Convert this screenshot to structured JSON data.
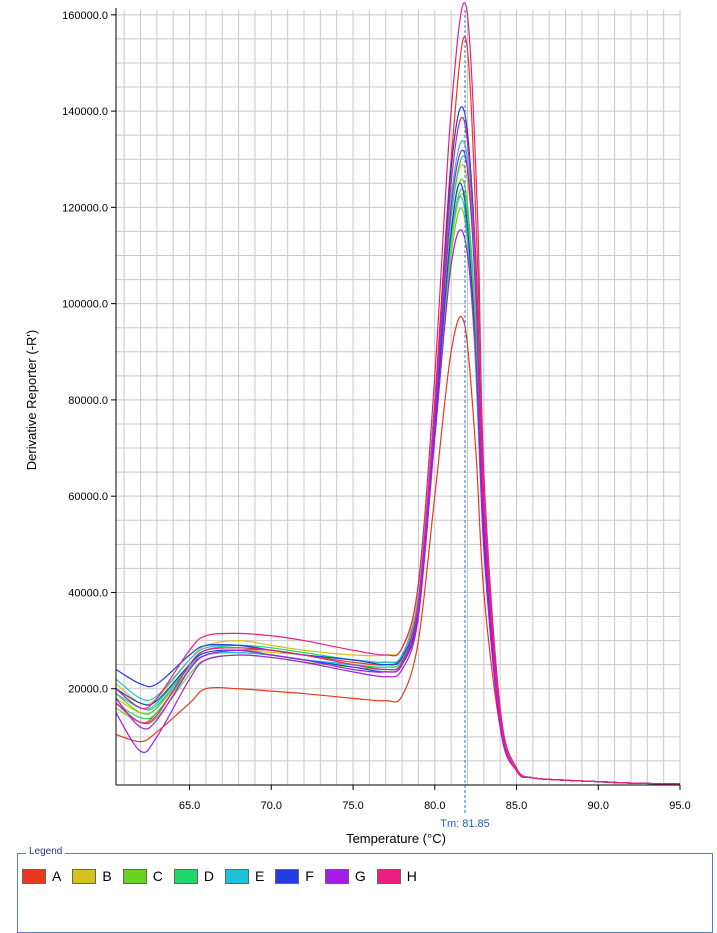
{
  "chart_data": {
    "type": "line",
    "title": "",
    "xlabel": "Temperature (°C)",
    "ylabel": "Derivative Reporter (-R')",
    "xlim": [
      60.5,
      95.0
    ],
    "ylim": [
      0,
      161000
    ],
    "x_ticks": [
      65.0,
      70.0,
      75.0,
      80.0,
      85.0,
      90.0,
      95.0
    ],
    "x_tick_labels": [
      "65.0",
      "70.0",
      "75.0",
      "80.0",
      "85.0",
      "90.0",
      "95.0"
    ],
    "y_ticks": [
      20000,
      40000,
      60000,
      80000,
      100000,
      120000,
      140000,
      160000
    ],
    "y_tick_labels": [
      "20000.0",
      "40000.0",
      "60000.0",
      "80000.0",
      "100000.0",
      "120000.0",
      "140000.0",
      "160000.0"
    ],
    "grid": true,
    "annotation": {
      "label": "Tm: 81.85",
      "x": 81.85
    },
    "legend": {
      "title": "Legend",
      "placement": "bottom",
      "items": [
        {
          "label": "A",
          "color": "#e8381e"
        },
        {
          "label": "B",
          "color": "#d4c21c"
        },
        {
          "label": "C",
          "color": "#6ad11e"
        },
        {
          "label": "D",
          "color": "#1ed86a"
        },
        {
          "label": "E",
          "color": "#1ec2d8"
        },
        {
          "label": "F",
          "color": "#1e3ee0"
        },
        {
          "label": "G",
          "color": "#a21ee8"
        },
        {
          "label": "H",
          "color": "#e81e82"
        }
      ]
    },
    "series": [
      {
        "group": "A",
        "color": "#e8381e",
        "peak_x": 81.8,
        "x": [
          60.5,
          62,
          63,
          65,
          66,
          68,
          70,
          72,
          75,
          77,
          78,
          79,
          80,
          81,
          81.8,
          82.5,
          83,
          84,
          85,
          86,
          88,
          90,
          92,
          95
        ],
        "y": [
          10500,
          9000,
          11000,
          17000,
          20000,
          20000,
          19500,
          19000,
          18000,
          17500,
          18500,
          30000,
          60000,
          90000,
          96000,
          70000,
          40000,
          12000,
          3000,
          1500,
          1000,
          700,
          400,
          200
        ]
      },
      {
        "group": "A",
        "color": "#e8381e",
        "peak_x": 81.9,
        "x": [
          60.5,
          62,
          63,
          65,
          66,
          68,
          70,
          72,
          75,
          77,
          78,
          79,
          80,
          81,
          81.9,
          82.6,
          83,
          84,
          85,
          86,
          88,
          90,
          92,
          95
        ],
        "y": [
          17000,
          13000,
          15000,
          24000,
          27000,
          28000,
          28000,
          27000,
          25500,
          25000,
          27000,
          40000,
          80000,
          130000,
          155000,
          110000,
          60000,
          15000,
          3500,
          1500,
          1000,
          700,
          400,
          200
        ]
      },
      {
        "group": "B",
        "color": "#d4c21c",
        "peak_x": 81.85,
        "x": [
          60.5,
          62,
          63,
          65,
          66,
          68,
          70,
          72,
          75,
          77,
          78,
          79,
          80,
          81,
          81.85,
          82.6,
          83,
          84,
          85,
          86,
          88,
          90,
          92,
          95
        ],
        "y": [
          21000,
          17000,
          18000,
          26000,
          29000,
          30000,
          29000,
          28000,
          27000,
          27000,
          28500,
          40000,
          78000,
          118000,
          128000,
          100000,
          55000,
          14000,
          3000,
          1500,
          1000,
          700,
          400,
          200
        ]
      },
      {
        "group": "B",
        "color": "#d4c21c",
        "peak_x": 81.8,
        "x": [
          60.5,
          62,
          63,
          65,
          66,
          68,
          70,
          72,
          75,
          77,
          78,
          79,
          80,
          81,
          81.8,
          82.5,
          83,
          84,
          85,
          86,
          88,
          90,
          92,
          95
        ],
        "y": [
          18000,
          15000,
          16000,
          24000,
          27000,
          28000,
          27500,
          27000,
          25000,
          24500,
          26000,
          38000,
          75000,
          112000,
          122000,
          95000,
          52000,
          13000,
          3000,
          1500,
          1000,
          700,
          400,
          200
        ]
      },
      {
        "group": "C",
        "color": "#6ad11e",
        "peak_x": 81.8,
        "x": [
          60.5,
          62,
          63,
          65,
          66,
          68,
          70,
          72,
          75,
          77,
          78,
          79,
          80,
          81,
          81.8,
          82.5,
          83,
          84,
          85,
          86,
          88,
          90,
          92,
          95
        ],
        "y": [
          19000,
          15000,
          16000,
          25000,
          28000,
          28500,
          28000,
          27000,
          26000,
          25500,
          27000,
          39000,
          77000,
          115000,
          125000,
          97000,
          53000,
          13000,
          3000,
          1500,
          1000,
          700,
          400,
          200
        ]
      },
      {
        "group": "C",
        "color": "#6ad11e",
        "peak_x": 81.75,
        "x": [
          60.5,
          62,
          63,
          65,
          66,
          68,
          70,
          72,
          75,
          77,
          78,
          79,
          80,
          81,
          81.75,
          82.4,
          83,
          84,
          85,
          86,
          88,
          90,
          92,
          95
        ],
        "y": [
          16000,
          13000,
          14000,
          23000,
          26000,
          27000,
          26500,
          25500,
          24500,
          24000,
          25500,
          37000,
          74000,
          110000,
          119000,
          93000,
          50000,
          12500,
          3000,
          1500,
          1000,
          700,
          400,
          200
        ]
      },
      {
        "group": "D",
        "color": "#1ed86a",
        "peak_x": 81.9,
        "x": [
          60.5,
          62,
          63,
          65,
          66,
          68,
          70,
          72,
          75,
          77,
          78,
          79,
          80,
          81,
          81.9,
          82.6,
          83,
          84,
          85,
          86,
          88,
          90,
          92,
          95
        ],
        "y": [
          20000,
          16000,
          17000,
          25000,
          28000,
          29000,
          28500,
          27500,
          26000,
          25500,
          27000,
          39000,
          78000,
          118000,
          130000,
          101000,
          56000,
          14000,
          3000,
          1500,
          1000,
          700,
          400,
          200
        ]
      },
      {
        "group": "D",
        "color": "#1ed86a",
        "peak_x": 81.8,
        "x": [
          60.5,
          62,
          63,
          65,
          66,
          68,
          70,
          72,
          75,
          77,
          78,
          79,
          80,
          81,
          81.8,
          82.5,
          83,
          84,
          85,
          86,
          88,
          90,
          92,
          95
        ],
        "y": [
          17000,
          14000,
          15000,
          24000,
          27000,
          27500,
          27000,
          26000,
          25000,
          24500,
          26000,
          37000,
          75000,
          113000,
          123000,
          96000,
          52000,
          13000,
          3000,
          1500,
          1000,
          700,
          400,
          200
        ]
      },
      {
        "group": "E",
        "color": "#1ec2d8",
        "peak_x": 81.85,
        "x": [
          60.5,
          62,
          63,
          65,
          66,
          68,
          70,
          72,
          75,
          77,
          78,
          79,
          80,
          81,
          81.85,
          82.5,
          83,
          84,
          85,
          86,
          88,
          90,
          92,
          95
        ],
        "y": [
          22000,
          18000,
          18500,
          26000,
          28500,
          29000,
          28000,
          27000,
          26000,
          25500,
          27000,
          39000,
          79000,
          122000,
          133000,
          104000,
          57000,
          14000,
          3000,
          1500,
          1000,
          700,
          400,
          200
        ]
      },
      {
        "group": "E",
        "color": "#1ec2d8",
        "peak_x": 81.75,
        "x": [
          60.5,
          62,
          63,
          65,
          66,
          68,
          70,
          72,
          75,
          77,
          78,
          79,
          80,
          81,
          81.75,
          82.4,
          83,
          84,
          85,
          86,
          88,
          90,
          92,
          95
        ],
        "y": [
          19000,
          16000,
          16500,
          24500,
          27000,
          27500,
          27000,
          26000,
          25000,
          24000,
          25500,
          37000,
          76000,
          114000,
          121000,
          95000,
          51000,
          13000,
          3000,
          1500,
          1000,
          700,
          400,
          200
        ]
      },
      {
        "group": "F",
        "color": "#1e3ee0",
        "peak_x": 81.8,
        "x": [
          60.5,
          62,
          63,
          65,
          66,
          68,
          70,
          72,
          75,
          77,
          78,
          79,
          80,
          81,
          81.8,
          82.5,
          83,
          84,
          85,
          86,
          88,
          90,
          92,
          95
        ],
        "y": [
          24000,
          21000,
          21000,
          27000,
          29000,
          29000,
          28000,
          27000,
          26000,
          25000,
          26500,
          38000,
          78000,
          128000,
          140000,
          110000,
          58000,
          14000,
          3000,
          1500,
          1000,
          700,
          400,
          200
        ]
      },
      {
        "group": "F",
        "color": "#1e3ee0",
        "peak_x": 81.7,
        "x": [
          60.5,
          62,
          63,
          65,
          66,
          68,
          70,
          72,
          75,
          77,
          78,
          79,
          80,
          81,
          81.7,
          82.4,
          83,
          84,
          85,
          86,
          88,
          90,
          92,
          95
        ],
        "y": [
          20000,
          17000,
          17500,
          25000,
          27500,
          28000,
          27000,
          26000,
          24500,
          23500,
          25000,
          36000,
          74000,
          115000,
          124000,
          97000,
          52000,
          13000,
          3000,
          1500,
          1000,
          700,
          400,
          200
        ]
      },
      {
        "group": "G",
        "color": "#a21ee8",
        "peak_x": 81.8,
        "x": [
          60.5,
          62,
          63,
          65,
          66,
          68,
          70,
          72,
          75,
          77,
          78,
          79,
          80,
          81,
          81.8,
          82.5,
          83,
          84,
          85,
          86,
          88,
          90,
          92,
          95
        ],
        "y": [
          15000,
          7000,
          10000,
          22000,
          26000,
          27000,
          26500,
          25500,
          23500,
          22500,
          24000,
          35000,
          72000,
          108000,
          114000,
          90000,
          49000,
          12000,
          3000,
          1500,
          1000,
          700,
          400,
          200
        ]
      },
      {
        "group": "G",
        "color": "#a21ee8",
        "peak_x": 81.85,
        "x": [
          60.5,
          62,
          63,
          65,
          66,
          68,
          70,
          72,
          75,
          77,
          78,
          79,
          80,
          81,
          81.85,
          82.5,
          83,
          84,
          85,
          86,
          88,
          90,
          92,
          95
        ],
        "y": [
          18000,
          12000,
          13500,
          24000,
          27000,
          28000,
          27000,
          26000,
          24000,
          23500,
          25000,
          37000,
          76000,
          120000,
          131000,
          102000,
          55000,
          13500,
          3000,
          1500,
          1000,
          700,
          400,
          200
        ]
      },
      {
        "group": "H",
        "color": "#e81e82",
        "peak_x": 81.9,
        "x": [
          60.5,
          62,
          63,
          65,
          66,
          68,
          70,
          72,
          75,
          77,
          78,
          79,
          80,
          81,
          81.9,
          82.6,
          83,
          84,
          85,
          86,
          88,
          90,
          92,
          95
        ],
        "y": [
          20000,
          16000,
          18000,
          28000,
          31000,
          31500,
          31000,
          30000,
          28000,
          27000,
          28500,
          42000,
          85000,
          140000,
          162000,
          120000,
          65000,
          16000,
          3500,
          1500,
          1000,
          700,
          400,
          200
        ]
      },
      {
        "group": "H",
        "color": "#e81e82",
        "peak_x": 81.8,
        "x": [
          60.5,
          62,
          63,
          65,
          66,
          68,
          70,
          72,
          75,
          77,
          78,
          79,
          80,
          81,
          81.8,
          82.5,
          83,
          84,
          85,
          86,
          88,
          90,
          92,
          95
        ],
        "y": [
          17000,
          13000,
          14500,
          25000,
          28000,
          28500,
          28000,
          27000,
          25000,
          24000,
          25500,
          38000,
          78000,
          125000,
          138000,
          108000,
          58000,
          14000,
          3000,
          1500,
          1000,
          700,
          400,
          200
        ]
      }
    ]
  }
}
